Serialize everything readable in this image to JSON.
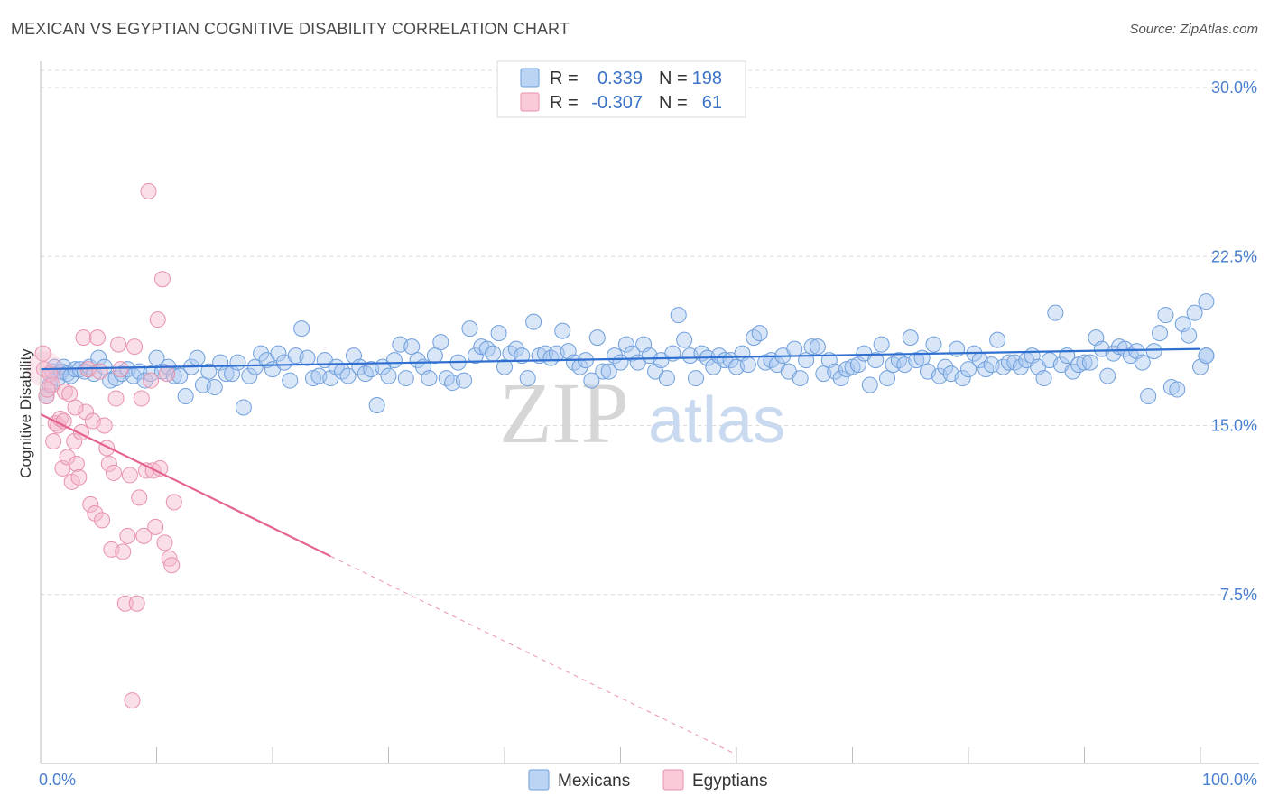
{
  "title": "MEXICAN VS EGYPTIAN COGNITIVE DISABILITY CORRELATION CHART",
  "source": "Source: ZipAtlas.com",
  "watermark": {
    "part1": "ZIP",
    "part2": "atlas"
  },
  "legend_box": {
    "rows": [
      {
        "r_label": "R =",
        "r_value": "0.339",
        "n_label": "N =",
        "n_value": "198",
        "color": "#a9c8f0"
      },
      {
        "r_label": "R =",
        "r_value": "-0.307",
        "n_label": "N =",
        "n_value": "61",
        "color": "#f5b7cb"
      }
    ]
  },
  "bottom_legend": [
    {
      "label": "Mexicans",
      "color": "#a9c8f0"
    },
    {
      "label": "Egyptians",
      "color": "#f5b7cb"
    }
  ],
  "chart_data": {
    "type": "scatter",
    "title": "MEXICAN VS EGYPTIAN COGNITIVE DISABILITY CORRELATION CHART",
    "xlabel": "",
    "ylabel": "Cognitive Disability",
    "xlim": [
      0,
      100
    ],
    "ylim": [
      0,
      30.5
    ],
    "x_tick_labels": [
      "0.0%",
      "100.0%"
    ],
    "y_ticks": [
      7.5,
      15.0,
      22.5,
      30.0
    ],
    "y_tick_labels": [
      "7.5%",
      "15.0%",
      "22.5%",
      "30.0%"
    ],
    "grid": "horizontal dashed",
    "legend_placement": "top-center",
    "series": [
      {
        "name": "Mexicans",
        "color": "#a9c8f0",
        "stroke": "#6f9fdc",
        "trend": {
          "x": [
            0,
            100
          ],
          "y": [
            17.5,
            18.4
          ],
          "color": "#2f6fcf"
        },
        "points": [
          [
            0.5,
            16.3
          ],
          [
            0.8,
            16.8
          ],
          [
            1.0,
            17.4
          ],
          [
            1.2,
            17.6
          ],
          [
            1.5,
            17.1
          ],
          [
            1.8,
            17.4
          ],
          [
            2.0,
            17.6
          ],
          [
            2.3,
            17.3
          ],
          [
            2.6,
            17.2
          ],
          [
            3.0,
            17.5
          ],
          [
            3.4,
            17.5
          ],
          [
            3.8,
            17.4
          ],
          [
            4.2,
            17.6
          ],
          [
            4.6,
            17.3
          ],
          [
            5.0,
            18.0
          ],
          [
            5.5,
            17.6
          ],
          [
            6.0,
            17.0
          ],
          [
            6.5,
            17.1
          ],
          [
            7.0,
            17.3
          ],
          [
            7.5,
            17.5
          ],
          [
            8.0,
            17.2
          ],
          [
            8.5,
            17.4
          ],
          [
            9.0,
            17.0
          ],
          [
            9.5,
            17.3
          ],
          [
            10.0,
            18.0
          ],
          [
            10.5,
            17.4
          ],
          [
            11.0,
            17.6
          ],
          [
            11.5,
            17.2
          ],
          [
            12.0,
            17.2
          ],
          [
            12.5,
            16.3
          ],
          [
            13.0,
            17.6
          ],
          [
            13.5,
            18.0
          ],
          [
            14.0,
            16.8
          ],
          [
            14.5,
            17.4
          ],
          [
            15.0,
            16.7
          ],
          [
            15.5,
            17.8
          ],
          [
            16.0,
            17.3
          ],
          [
            16.5,
            17.3
          ],
          [
            17.0,
            17.8
          ],
          [
            17.5,
            15.8
          ],
          [
            18.0,
            17.2
          ],
          [
            18.5,
            17.6
          ],
          [
            19.0,
            18.2
          ],
          [
            19.5,
            17.9
          ],
          [
            20.0,
            17.5
          ],
          [
            20.5,
            18.2
          ],
          [
            21.0,
            17.8
          ],
          [
            21.5,
            17.0
          ],
          [
            22.0,
            18.1
          ],
          [
            22.5,
            19.3
          ],
          [
            23.0,
            18.0
          ],
          [
            23.5,
            17.1
          ],
          [
            24.0,
            17.2
          ],
          [
            24.5,
            17.9
          ],
          [
            25.0,
            17.1
          ],
          [
            25.5,
            17.6
          ],
          [
            26.0,
            17.4
          ],
          [
            26.5,
            17.2
          ],
          [
            27.0,
            18.1
          ],
          [
            27.5,
            17.6
          ],
          [
            28.0,
            17.3
          ],
          [
            28.5,
            17.5
          ],
          [
            29.0,
            15.9
          ],
          [
            29.5,
            17.6
          ],
          [
            30.0,
            17.2
          ],
          [
            30.5,
            17.9
          ],
          [
            31.0,
            18.6
          ],
          [
            31.5,
            17.1
          ],
          [
            32.0,
            18.5
          ],
          [
            32.5,
            17.9
          ],
          [
            33.0,
            17.6
          ],
          [
            33.5,
            17.1
          ],
          [
            34.0,
            18.1
          ],
          [
            34.5,
            18.7
          ],
          [
            35.0,
            17.1
          ],
          [
            35.5,
            16.9
          ],
          [
            36.0,
            17.8
          ],
          [
            36.5,
            17.0
          ],
          [
            37.0,
            19.3
          ],
          [
            37.5,
            18.1
          ],
          [
            38.0,
            18.5
          ],
          [
            38.5,
            18.4
          ],
          [
            39.0,
            18.2
          ],
          [
            39.5,
            19.1
          ],
          [
            40.0,
            17.6
          ],
          [
            40.5,
            18.2
          ],
          [
            41.0,
            18.4
          ],
          [
            41.5,
            18.1
          ],
          [
            42.0,
            17.1
          ],
          [
            42.5,
            19.6
          ],
          [
            43.0,
            18.1
          ],
          [
            43.5,
            18.2
          ],
          [
            44.0,
            18.0
          ],
          [
            44.5,
            18.2
          ],
          [
            45.0,
            19.2
          ],
          [
            45.5,
            18.3
          ],
          [
            46.0,
            17.8
          ],
          [
            46.5,
            17.6
          ],
          [
            47.0,
            17.9
          ],
          [
            47.5,
            17.0
          ],
          [
            48.0,
            18.9
          ],
          [
            48.5,
            17.4
          ],
          [
            49.0,
            17.4
          ],
          [
            49.5,
            18.1
          ],
          [
            50.0,
            17.8
          ],
          [
            50.5,
            18.6
          ],
          [
            51.0,
            18.2
          ],
          [
            51.5,
            17.8
          ],
          [
            52.0,
            18.6
          ],
          [
            52.5,
            18.1
          ],
          [
            53.0,
            17.4
          ],
          [
            53.5,
            17.9
          ],
          [
            54.0,
            17.1
          ],
          [
            54.5,
            18.2
          ],
          [
            55.0,
            19.9
          ],
          [
            55.5,
            18.8
          ],
          [
            56.0,
            18.1
          ],
          [
            56.5,
            17.1
          ],
          [
            57.0,
            18.2
          ],
          [
            57.5,
            18.0
          ],
          [
            58.0,
            17.6
          ],
          [
            58.5,
            18.1
          ],
          [
            59.0,
            17.9
          ],
          [
            59.5,
            17.9
          ],
          [
            60.0,
            17.6
          ],
          [
            60.5,
            18.2
          ],
          [
            61.0,
            17.7
          ],
          [
            61.5,
            18.9
          ],
          [
            62.0,
            19.1
          ],
          [
            62.5,
            17.8
          ],
          [
            63.0,
            17.9
          ],
          [
            63.5,
            17.7
          ],
          [
            64.0,
            18.1
          ],
          [
            64.5,
            17.4
          ],
          [
            65.0,
            18.4
          ],
          [
            65.5,
            17.1
          ],
          [
            66.0,
            17.9
          ],
          [
            66.5,
            18.5
          ],
          [
            67.0,
            18.5
          ],
          [
            67.5,
            17.3
          ],
          [
            68.0,
            17.9
          ],
          [
            68.5,
            17.4
          ],
          [
            69.0,
            17.1
          ],
          [
            69.5,
            17.5
          ],
          [
            70.0,
            17.6
          ],
          [
            70.5,
            17.7
          ],
          [
            71.0,
            18.2
          ],
          [
            71.5,
            16.8
          ],
          [
            72.0,
            17.9
          ],
          [
            72.5,
            18.6
          ],
          [
            73.0,
            17.1
          ],
          [
            73.5,
            17.7
          ],
          [
            74.0,
            17.9
          ],
          [
            74.5,
            17.7
          ],
          [
            75.0,
            18.9
          ],
          [
            75.5,
            17.9
          ],
          [
            76.0,
            18.0
          ],
          [
            76.5,
            17.4
          ],
          [
            77.0,
            18.6
          ],
          [
            77.5,
            17.2
          ],
          [
            78.0,
            17.6
          ],
          [
            78.5,
            17.3
          ],
          [
            79.0,
            18.4
          ],
          [
            79.5,
            17.1
          ],
          [
            80.0,
            17.5
          ],
          [
            80.5,
            18.2
          ],
          [
            81.0,
            17.9
          ],
          [
            81.5,
            17.5
          ],
          [
            82.0,
            17.7
          ],
          [
            82.5,
            18.8
          ],
          [
            83.0,
            17.6
          ],
          [
            83.5,
            17.8
          ],
          [
            84.0,
            17.8
          ],
          [
            84.5,
            17.6
          ],
          [
            85.0,
            17.9
          ],
          [
            85.5,
            18.1
          ],
          [
            86.0,
            17.6
          ],
          [
            86.5,
            17.1
          ],
          [
            87.0,
            17.9
          ],
          [
            87.5,
            20.0
          ],
          [
            88.0,
            17.7
          ],
          [
            88.5,
            18.1
          ],
          [
            89.0,
            17.4
          ],
          [
            89.5,
            17.7
          ],
          [
            90.0,
            17.8
          ],
          [
            90.5,
            17.8
          ],
          [
            91.0,
            18.9
          ],
          [
            91.5,
            18.4
          ],
          [
            92.0,
            17.2
          ],
          [
            92.5,
            18.2
          ],
          [
            93.0,
            18.5
          ],
          [
            93.5,
            18.4
          ],
          [
            94.0,
            18.1
          ],
          [
            94.5,
            18.3
          ],
          [
            95.0,
            17.8
          ],
          [
            95.5,
            16.3
          ],
          [
            96.0,
            18.3
          ],
          [
            96.5,
            19.1
          ],
          [
            97.0,
            19.9
          ],
          [
            97.5,
            16.7
          ],
          [
            98.0,
            16.6
          ],
          [
            98.5,
            19.5
          ],
          [
            99.0,
            19.0
          ],
          [
            99.5,
            20.0
          ],
          [
            100.0,
            17.6
          ],
          [
            100.5,
            18.1
          ],
          [
            101.0,
            18.1
          ],
          [
            101.5,
            20.5
          ]
        ]
      },
      {
        "name": "Egyptians",
        "color": "#f5b7cb",
        "stroke": "#e891ad",
        "trend": {
          "x": [
            0,
            25
          ],
          "y": [
            15.5,
            9.2
          ],
          "dashed_to": [
            60,
            0.4
          ],
          "color": "#e4638f"
        },
        "points": [
          [
            0.3,
            17.5
          ],
          [
            0.5,
            16.3
          ],
          [
            0.8,
            17.3
          ],
          [
            1.0,
            16.8
          ],
          [
            1.3,
            15.1
          ],
          [
            1.5,
            15.0
          ],
          [
            1.7,
            15.3
          ],
          [
            1.9,
            13.1
          ],
          [
            2.1,
            16.5
          ],
          [
            2.3,
            13.6
          ],
          [
            2.5,
            16.4
          ],
          [
            2.7,
            12.5
          ],
          [
            2.9,
            14.3
          ],
          [
            3.1,
            13.3
          ],
          [
            3.3,
            12.7
          ],
          [
            3.5,
            14.7
          ],
          [
            3.7,
            18.9
          ],
          [
            3.9,
            15.6
          ],
          [
            4.1,
            17.5
          ],
          [
            4.3,
            11.5
          ],
          [
            4.5,
            15.2
          ],
          [
            4.7,
            11.1
          ],
          [
            4.9,
            18.9
          ],
          [
            5.1,
            17.4
          ],
          [
            5.3,
            10.8
          ],
          [
            5.5,
            15.0
          ],
          [
            5.7,
            14.0
          ],
          [
            5.9,
            13.3
          ],
          [
            6.1,
            9.5
          ],
          [
            6.3,
            12.9
          ],
          [
            6.5,
            16.2
          ],
          [
            6.7,
            18.6
          ],
          [
            6.9,
            17.5
          ],
          [
            7.1,
            9.4
          ],
          [
            7.3,
            7.1
          ],
          [
            7.5,
            10.1
          ],
          [
            7.7,
            12.8
          ],
          [
            7.9,
            2.8
          ],
          [
            8.1,
            18.5
          ],
          [
            8.3,
            7.1
          ],
          [
            8.5,
            11.8
          ],
          [
            8.7,
            16.2
          ],
          [
            8.9,
            10.1
          ],
          [
            9.1,
            13.0
          ],
          [
            9.3,
            25.4
          ],
          [
            9.5,
            17.0
          ],
          [
            9.7,
            13.0
          ],
          [
            9.9,
            10.5
          ],
          [
            10.1,
            19.7
          ],
          [
            10.3,
            13.1
          ],
          [
            10.5,
            21.5
          ],
          [
            10.7,
            9.8
          ],
          [
            10.9,
            17.3
          ],
          [
            11.1,
            9.1
          ],
          [
            11.3,
            8.8
          ],
          [
            11.5,
            11.6
          ],
          [
            0.2,
            18.2
          ],
          [
            0.6,
            16.6
          ],
          [
            1.1,
            14.3
          ],
          [
            2.0,
            15.2
          ],
          [
            3.0,
            15.8
          ]
        ]
      }
    ]
  }
}
